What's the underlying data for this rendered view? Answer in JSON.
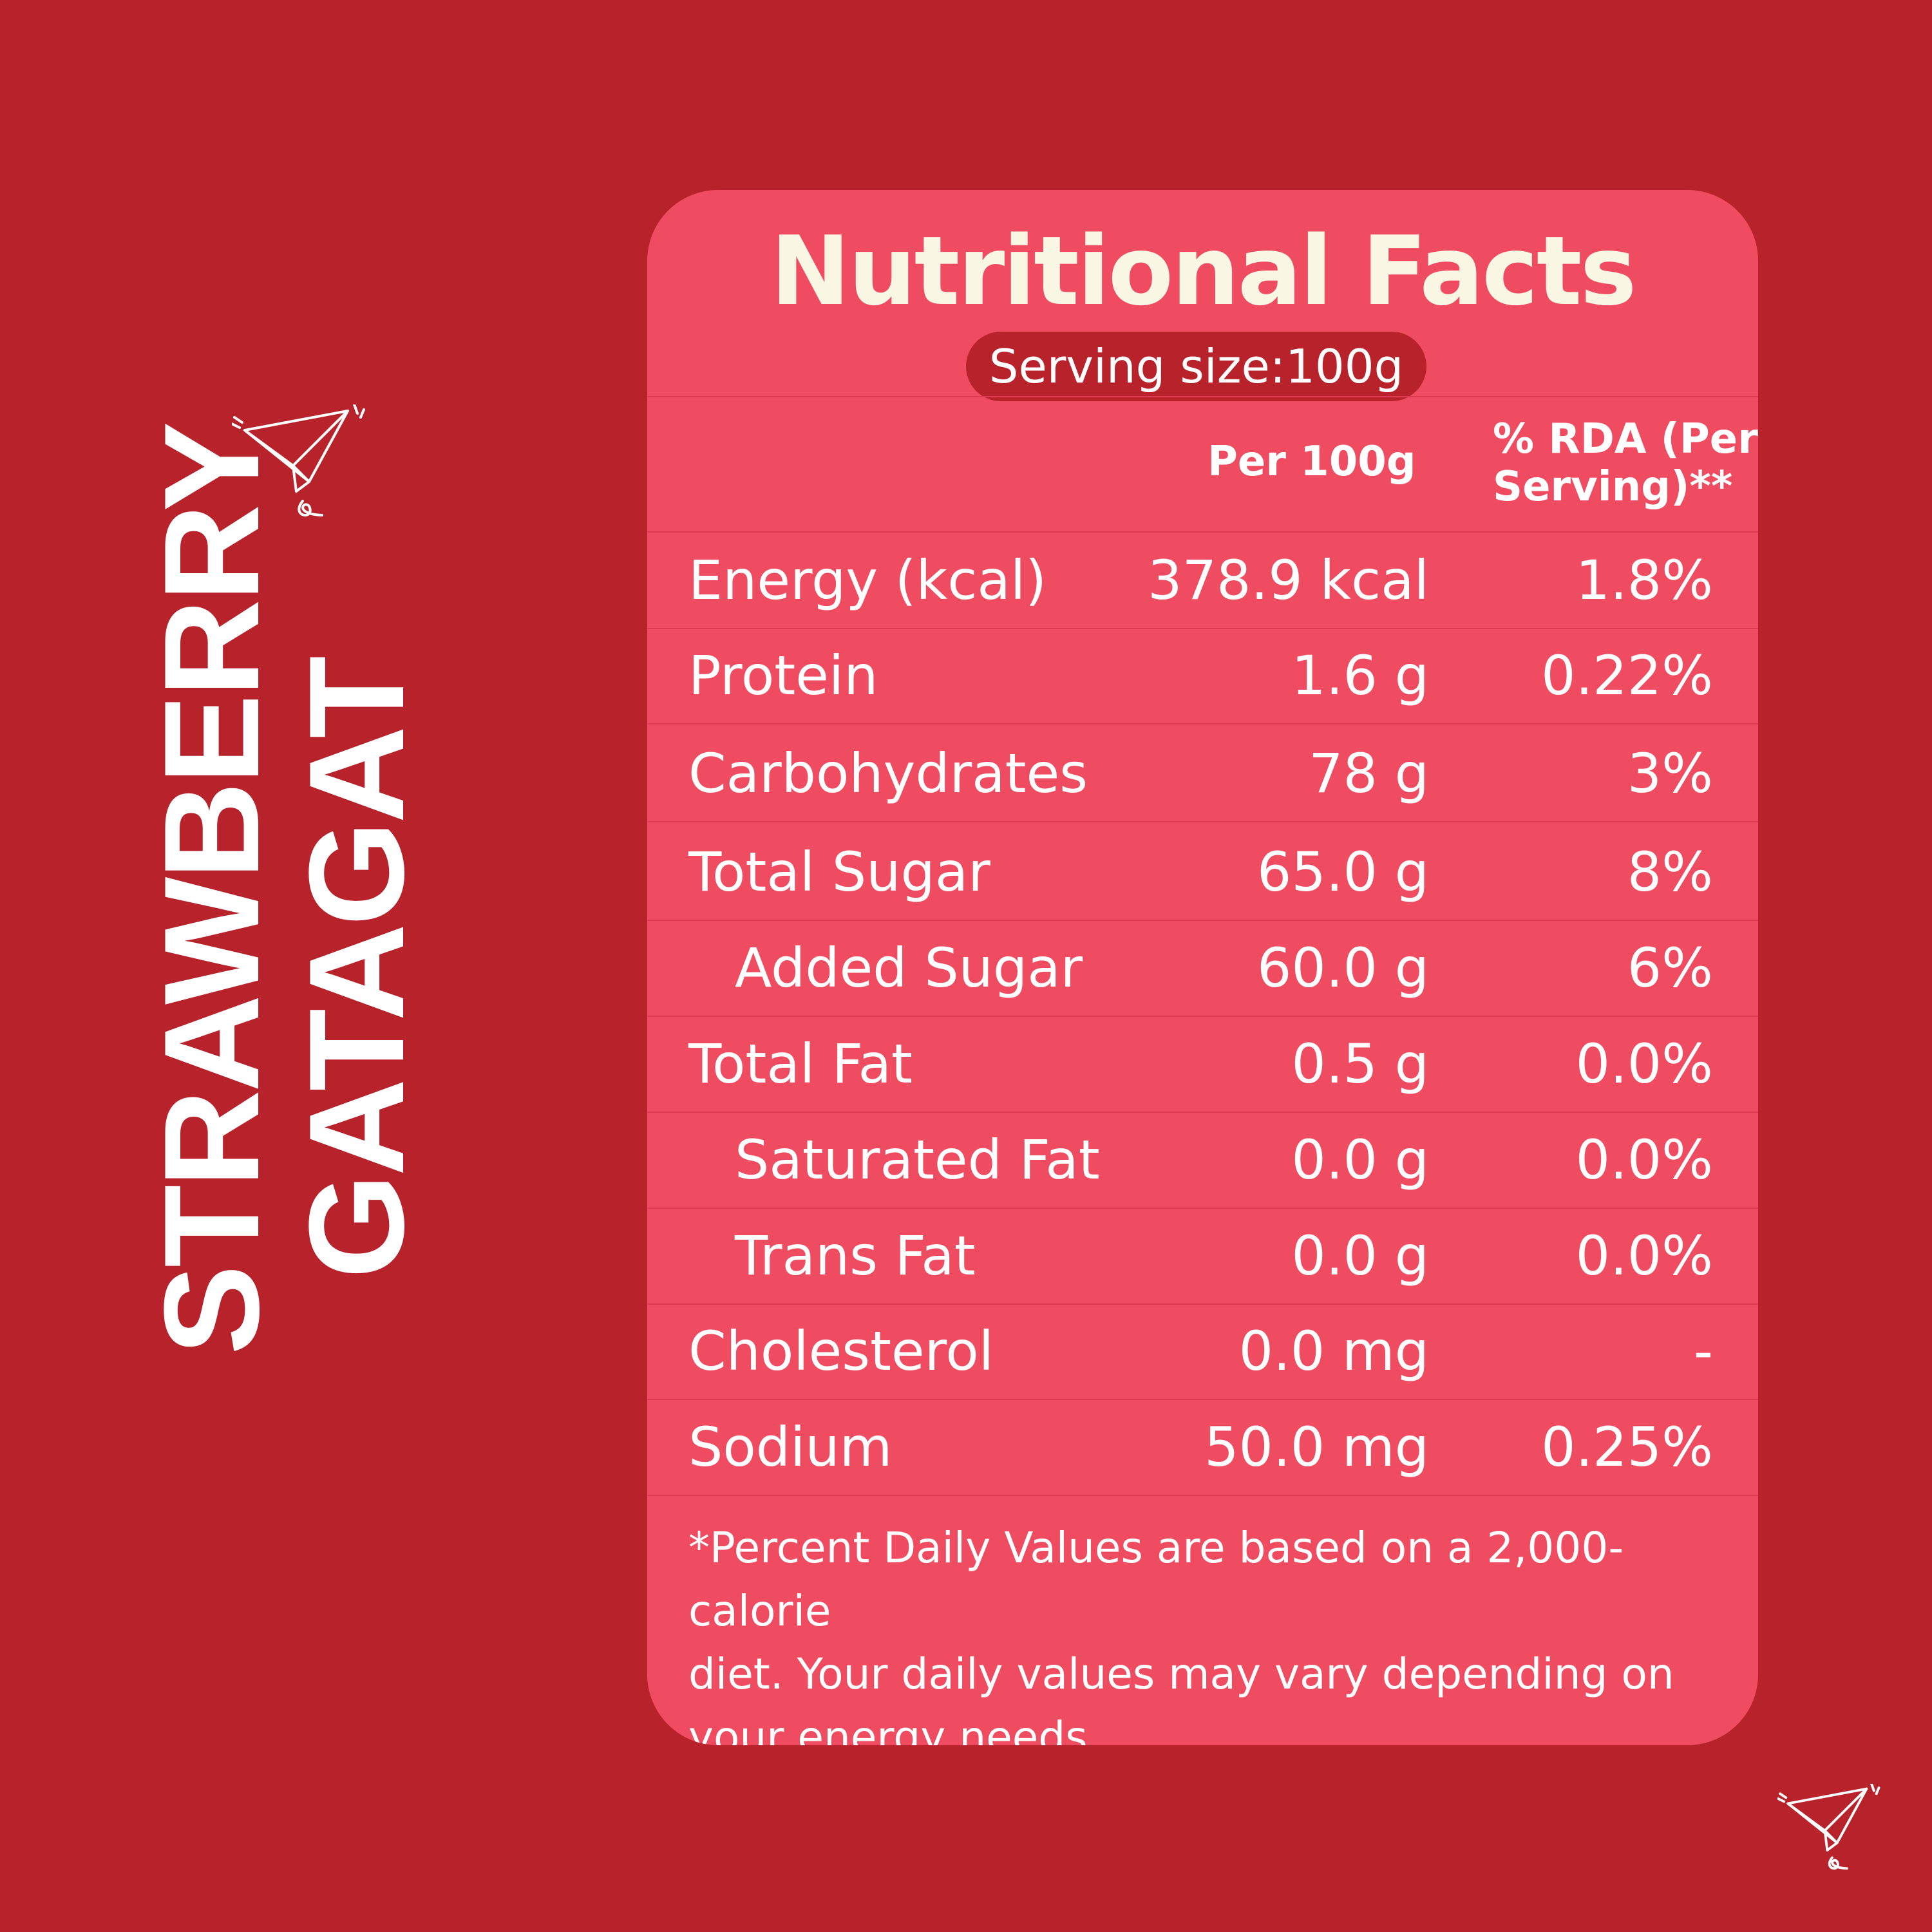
{
  "brand": {
    "line1": "STRAWBERRY",
    "line2": "GATAGAT"
  },
  "card": {
    "title": "Nutritional Facts",
    "serving": "Serving size:100g",
    "header": {
      "per": "Per 100g",
      "rda_line1": "% RDA (Per",
      "rda_line2": "Serving)**"
    },
    "rows": [
      {
        "label": "Energy (kcal)",
        "value": "378.9 kcal",
        "rda": "1.8%"
      },
      {
        "label": "Protein",
        "value": "1.6 g",
        "rda": "0.22%"
      },
      {
        "label": "Carbohydrates",
        "value": "78 g",
        "rda": "3%"
      },
      {
        "label": "Total Sugar",
        "value": "65.0 g",
        "rda": "8%"
      },
      {
        "label": "Added Sugar",
        "value": "60.0 g",
        "rda": "6%"
      },
      {
        "label": "Total Fat",
        "value": "0.5 g",
        "rda": "0.0%"
      },
      {
        "label": "Saturated Fat",
        "value": "0.0 g",
        "rda": "0.0%"
      },
      {
        "label": "Trans Fat",
        "value": "0.0 g",
        "rda": "0.0%"
      },
      {
        "label": "Cholesterol",
        "value": "0.0 mg",
        "rda": "-"
      },
      {
        "label": "Sodium",
        "value": "50.0 mg",
        "rda": "0.25%"
      }
    ],
    "footnote_lines": [
      "*Percent Daily Values are based on a 2,000-calorie",
      "diet. Your daily values may vary depending on",
      "your energy needs."
    ]
  },
  "colors": {
    "background": "#b8232b",
    "card": "#ef4c62",
    "title": "#f9f6e3",
    "pill": "#b8232b"
  },
  "icons": [
    "paper-plane-icon",
    "paper-plane-icon"
  ]
}
